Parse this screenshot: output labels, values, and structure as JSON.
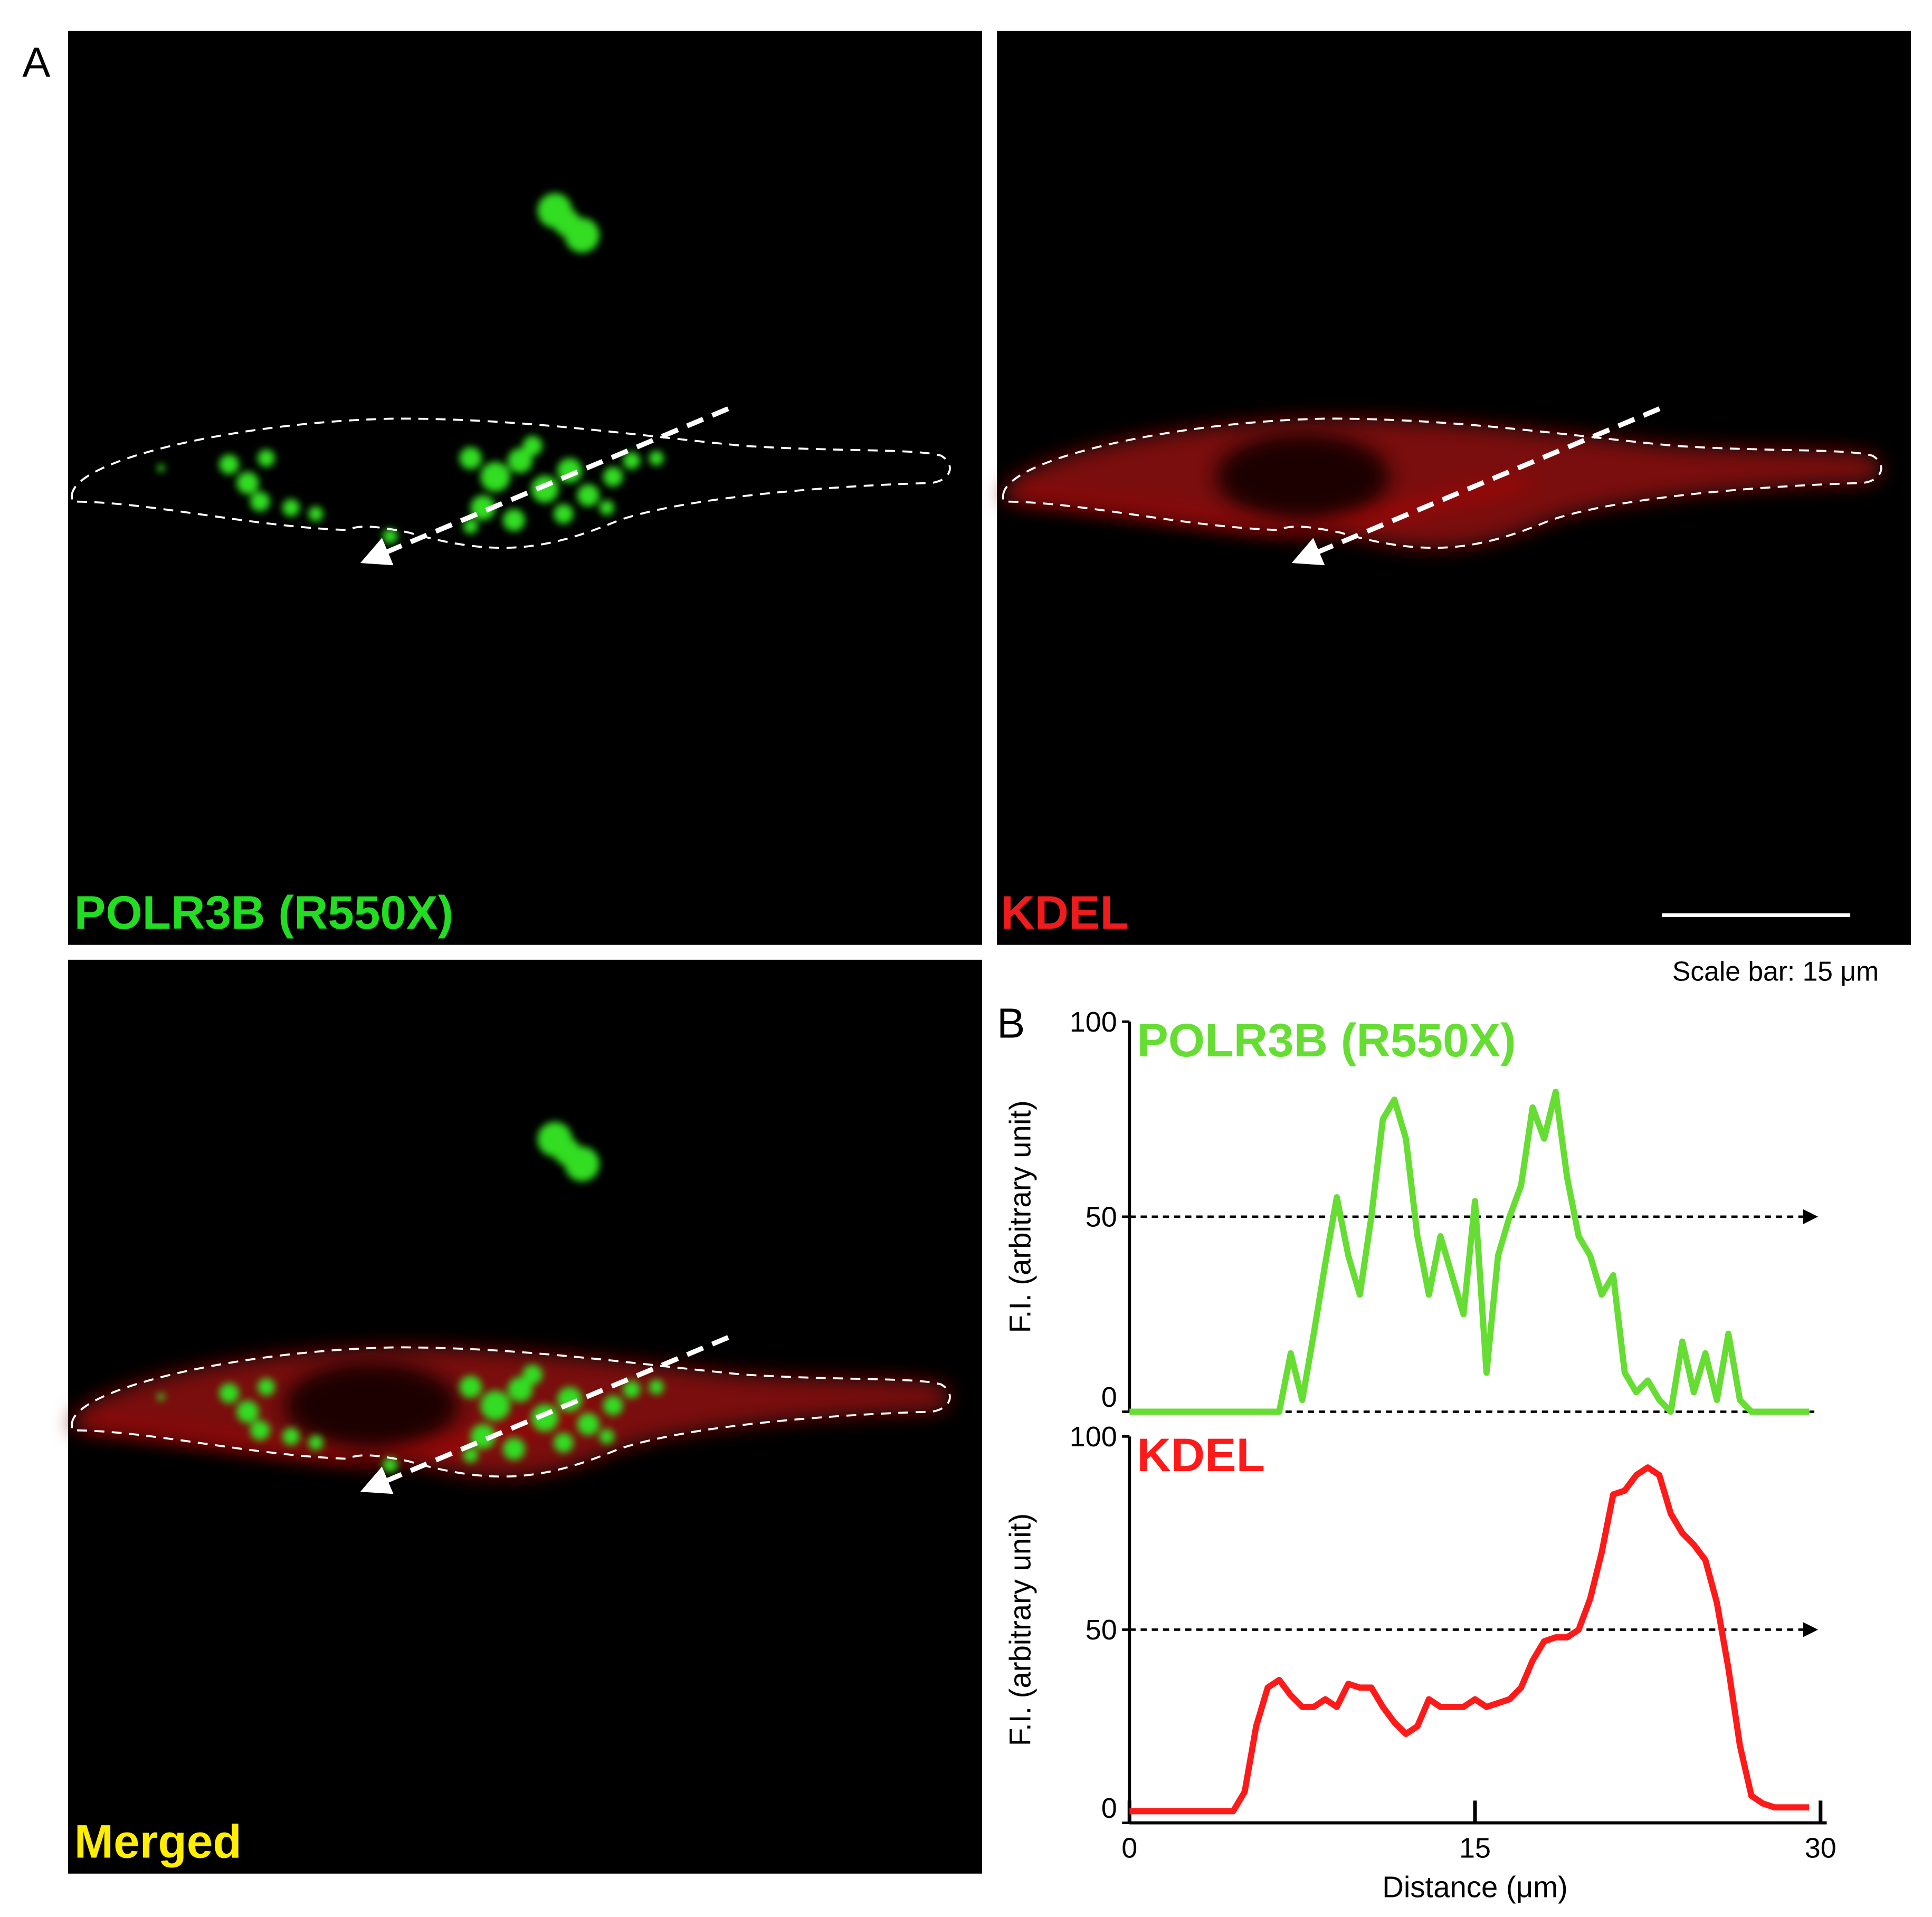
{
  "label_a": "A",
  "label_b": "B",
  "panels": [
    {
      "label": "POLR3B (R550X)",
      "color": "#22dd22"
    },
    {
      "label": "KDEL",
      "color": "#ee1c1c"
    },
    {
      "label": "Merged",
      "color": "#ffee00"
    }
  ],
  "scale_bar": "Scale bar: 15 μm",
  "chart_data": [
    {
      "type": "line",
      "title": "POLR3B (R550X)",
      "ylabel": "F.I. (arbitrary unit)",
      "x": [
        0,
        0.5,
        1,
        1.5,
        2,
        2.5,
        3,
        3.5,
        4,
        4.5,
        5,
        5.5,
        6,
        6.5,
        7,
        7.5,
        8,
        8.5,
        9,
        9.5,
        10,
        10.5,
        11,
        11.5,
        12,
        12.5,
        13,
        13.5,
        14,
        14.5,
        15,
        15.5,
        16,
        16.5,
        17,
        17.5,
        18,
        18.5,
        19,
        19.5,
        20,
        20.5,
        21,
        21.5,
        22,
        22.5,
        23,
        23.5,
        24,
        24.5,
        25,
        25.5,
        26,
        26.5,
        27,
        27.5,
        28,
        28.5,
        29,
        29.5
      ],
      "series": [
        {
          "color": "#66dd33",
          "values": [
            0,
            0,
            0,
            0,
            0,
            0,
            0,
            0,
            0,
            0,
            0,
            0,
            0,
            0,
            15,
            3,
            20,
            38,
            55,
            40,
            30,
            50,
            75,
            80,
            70,
            45,
            30,
            45,
            35,
            25,
            54,
            10,
            40,
            50,
            58,
            78,
            70,
            82,
            60,
            45,
            40,
            30,
            35,
            10,
            5,
            8,
            3,
            0,
            18,
            5,
            15,
            3,
            20,
            3,
            0,
            0,
            0,
            0,
            0,
            0
          ]
        }
      ],
      "xlim": [
        0,
        30
      ],
      "ylim": [
        0,
        100
      ],
      "yticks": [
        0,
        50,
        100
      ],
      "reference_line": 50,
      "baseline_dashed": true
    },
    {
      "type": "line",
      "title": "KDEL",
      "ylabel": "F.I. (arbitrary unit)",
      "xlabel": "Distance (μm)",
      "x": [
        0,
        0.5,
        1,
        1.5,
        2,
        2.5,
        3,
        3.5,
        4,
        4.5,
        5,
        5.5,
        6,
        6.5,
        7,
        7.5,
        8,
        8.5,
        9,
        9.5,
        10,
        10.5,
        11,
        11.5,
        12,
        12.5,
        13,
        13.5,
        14,
        14.5,
        15,
        15.5,
        16,
        16.5,
        17,
        17.5,
        18,
        18.5,
        19,
        19.5,
        20,
        20.5,
        21,
        21.5,
        22,
        22.5,
        23,
        23.5,
        24,
        24.5,
        25,
        25.5,
        26,
        26.5,
        27,
        27.5,
        28,
        28.5,
        29,
        29.5
      ],
      "series": [
        {
          "color": "#ff1a1a",
          "values": [
            3,
            3,
            3,
            3,
            3,
            3,
            3,
            3,
            3,
            3,
            8,
            25,
            35,
            37,
            33,
            30,
            30,
            32,
            30,
            36,
            35,
            35,
            30,
            26,
            23,
            25,
            32,
            30,
            30,
            30,
            32,
            30,
            31,
            32,
            35,
            42,
            47,
            48,
            48,
            50,
            58,
            70,
            85,
            86,
            90,
            92,
            90,
            80,
            75,
            72,
            68,
            57,
            40,
            20,
            7,
            5,
            4,
            4,
            4,
            4
          ]
        }
      ],
      "xlim": [
        0,
        30
      ],
      "xticks": [
        0,
        15,
        30
      ],
      "ylim": [
        0,
        100
      ],
      "yticks": [
        0,
        50,
        100
      ],
      "reference_line": 50,
      "baseline_dashed": false
    }
  ]
}
